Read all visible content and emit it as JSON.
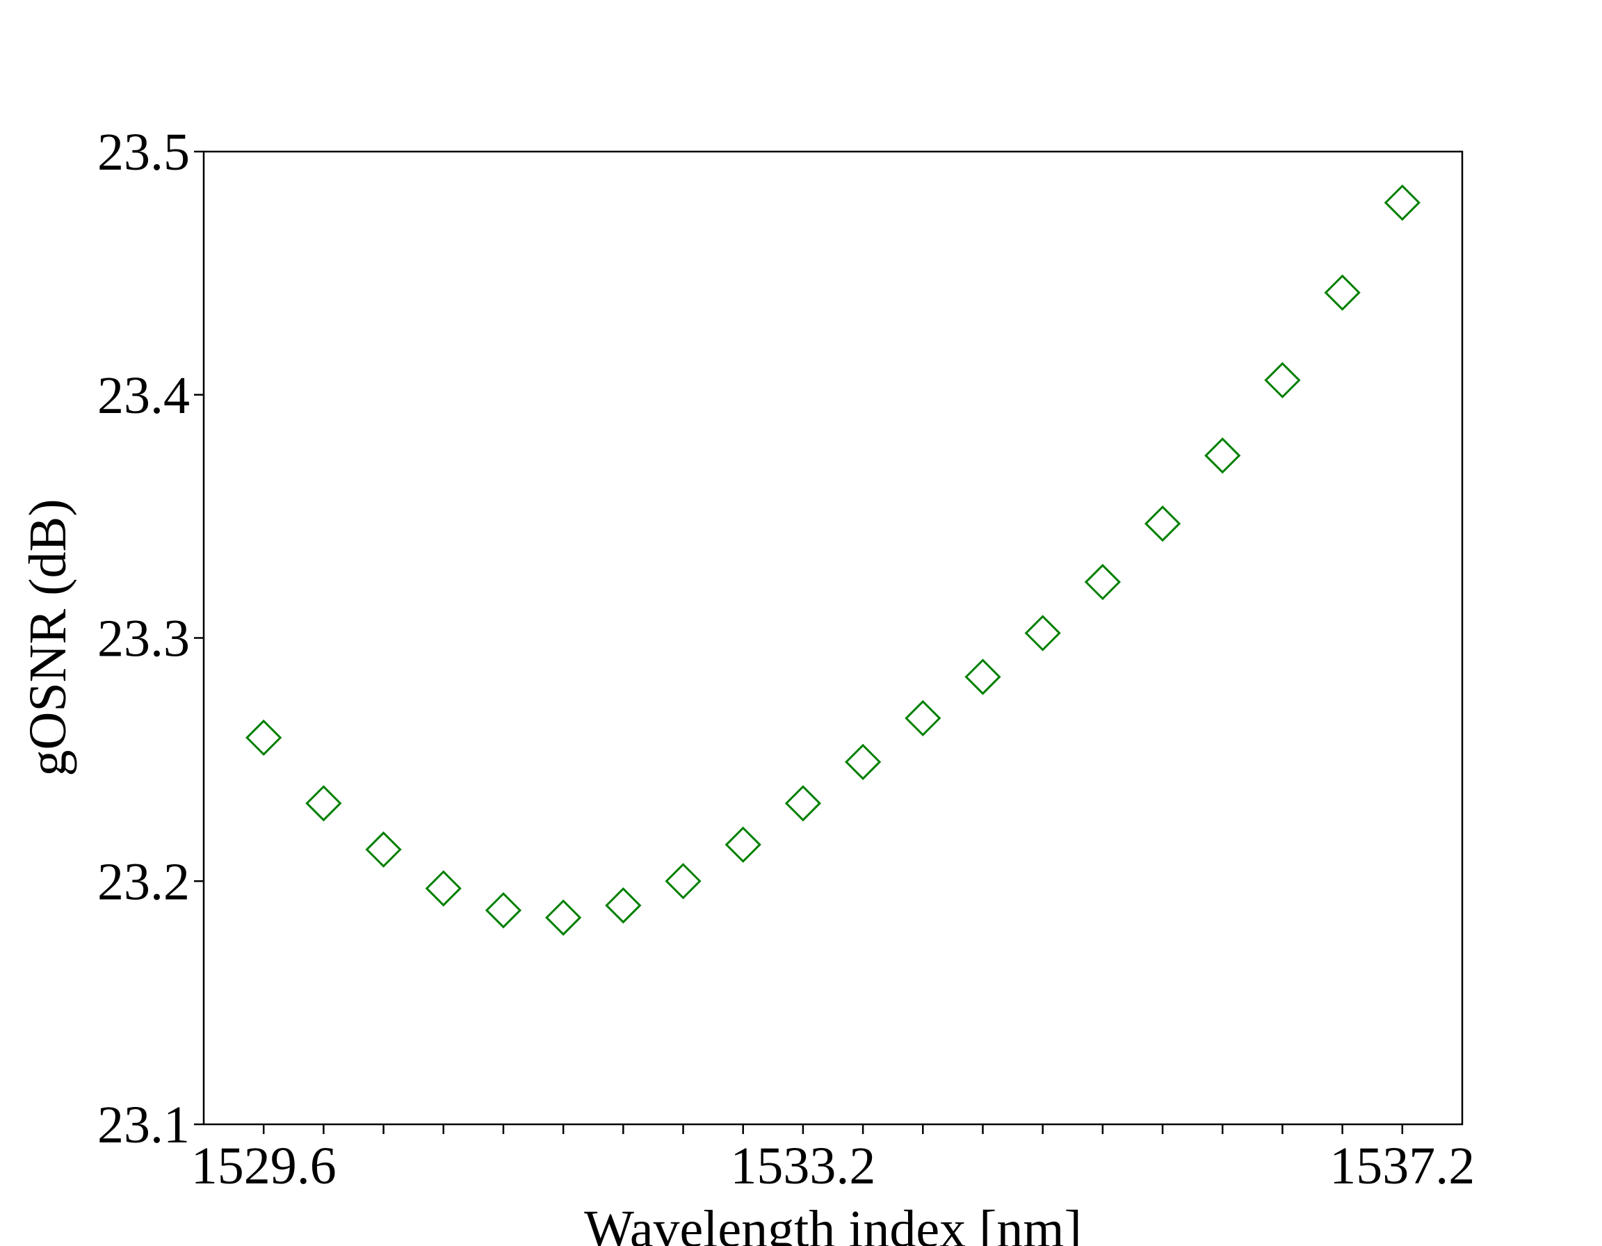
{
  "chart_data": {
    "type": "scatter",
    "xlabel": "Wavelength index [nm]",
    "ylabel": "gOSNR (dB)",
    "xlim": [
      1529.2,
      1537.6
    ],
    "ylim": [
      23.1,
      23.5
    ],
    "x_ticks": [
      1529.6,
      1530.0,
      1530.4,
      1530.8,
      1531.2,
      1531.6,
      1532.0,
      1532.4,
      1532.8,
      1533.2,
      1533.6,
      1534.0,
      1534.4,
      1534.8,
      1535.2,
      1535.6,
      1536.0,
      1536.4,
      1536.8,
      1537.2
    ],
    "x_tick_labels": [
      "1529.6",
      "",
      "",
      "",
      "",
      "",
      "",
      "",
      "",
      "1533.2",
      "",
      "",
      "",
      "",
      "",
      "",
      "",
      "",
      "",
      "1537.2"
    ],
    "y_ticks": [
      23.1,
      23.2,
      23.3,
      23.4,
      23.5
    ],
    "y_tick_labels": [
      "23.1",
      "23.2",
      "23.3",
      "23.4",
      "23.5"
    ],
    "grid": false,
    "marker": "open-diamond",
    "series": [
      {
        "color": "#008000",
        "x": [
          1529.6,
          1530.0,
          1530.4,
          1530.8,
          1531.2,
          1531.6,
          1532.0,
          1532.4,
          1532.8,
          1533.2,
          1533.6,
          1534.0,
          1534.4,
          1534.8,
          1535.2,
          1535.6,
          1536.0,
          1536.4,
          1536.8,
          1537.2
        ],
        "y": [
          23.259,
          23.232,
          23.213,
          23.197,
          23.188,
          23.185,
          23.19,
          23.2,
          23.215,
          23.232,
          23.249,
          23.267,
          23.284,
          23.302,
          23.323,
          23.347,
          23.375,
          23.406,
          23.442,
          23.479
        ]
      }
    ]
  }
}
